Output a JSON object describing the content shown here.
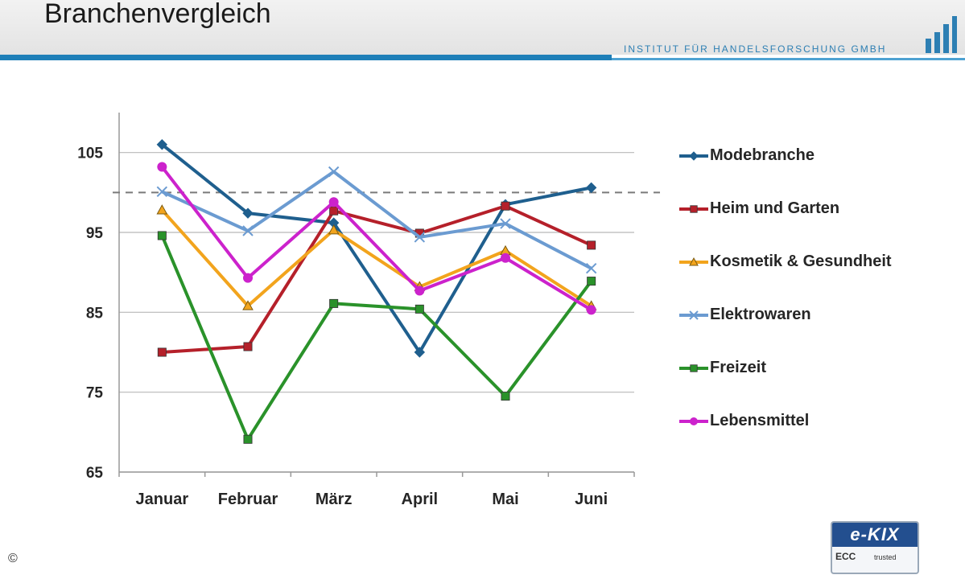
{
  "header": {
    "title": "Branchenvergleich",
    "institute": "INSTITUT FÜR HANDELSFORSCHUNG GMBH"
  },
  "footer": {
    "copyright_symbol": "©",
    "badge_title": "e-KIX",
    "badge_ecc": "ECC",
    "badge_small": "trusted"
  },
  "chart_data": {
    "type": "line",
    "categories": [
      "Januar",
      "Februar",
      "März",
      "April",
      "Mai",
      "Juni"
    ],
    "ylim": [
      65,
      110
    ],
    "yticks": [
      65,
      75,
      85,
      95,
      105
    ],
    "reference_line": 100,
    "grid": true,
    "legend_position": "right",
    "series": [
      {
        "name": "Modebranche",
        "color": "#1f5f8e",
        "marker": "diamond",
        "values": [
          106,
          97.4,
          96.2,
          80,
          98.5,
          100.6
        ]
      },
      {
        "name": "Heim und Garten",
        "color": "#b5202a",
        "marker": "square",
        "values": [
          80,
          80.7,
          97.7,
          94.9,
          98.3,
          93.4
        ]
      },
      {
        "name": "Kosmetik & Gesundheit",
        "color": "#f2a41d",
        "marker": "triangle",
        "values": [
          97.8,
          85.8,
          95.3,
          88.2,
          92.7,
          85.8
        ]
      },
      {
        "name": "Elektrowaren",
        "color": "#6b9bd1",
        "marker": "cross",
        "values": [
          100.1,
          95.2,
          102.6,
          94.4,
          96.1,
          90.5
        ]
      },
      {
        "name": "Freizeit",
        "color": "#2a922a",
        "marker": "square",
        "values": [
          94.6,
          69.1,
          86.1,
          85.4,
          74.5,
          88.9
        ]
      },
      {
        "name": "Lebensmittel",
        "color": "#cc22cc",
        "marker": "circle",
        "values": [
          103.2,
          89.3,
          98.8,
          87.7,
          91.8,
          85.3
        ]
      }
    ]
  }
}
